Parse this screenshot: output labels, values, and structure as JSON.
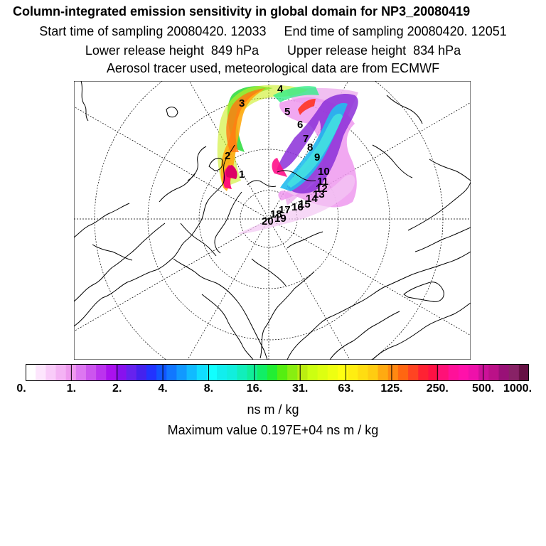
{
  "header": {
    "title": "Column-integrated emission sensitivity in global domain for NP3_20080419",
    "start_label": "Start time of sampling 20080420. 12033",
    "end_label": "End time of sampling 20080420. 12051",
    "lower_label": "Lower release height  849 hPa",
    "upper_label": "Upper release height  834 hPa",
    "aerosol_line": "Aerosol tracer used, meteorological data are from ECMWF"
  },
  "map": {
    "projection": "polar stereographic, North Pole",
    "day_markers": [
      "1",
      "2",
      "3",
      "4",
      "5",
      "6",
      "7",
      "8",
      "9",
      "10",
      "11",
      "12",
      "13",
      "14",
      "15",
      "16",
      "17",
      "18",
      "19",
      "20"
    ]
  },
  "colorbar": {
    "tick_labels": [
      "0.",
      "1.",
      "2.",
      "4.",
      "8.",
      "16.",
      "31.",
      "63.",
      "125.",
      "250.",
      "500.",
      "1000."
    ],
    "colors": [
      "#ffffff",
      "#fde6fd",
      "#f9ccf9",
      "#f4b3f4",
      "#ee99ee",
      "#dd77f1",
      "#cc55ee",
      "#bb33ee",
      "#aa11ee",
      "#8811ee",
      "#6622ee",
      "#4422ee",
      "#2233ff",
      "#1155ff",
      "#1177ff",
      "#1199ff",
      "#11bbff",
      "#11ddff",
      "#11ffff",
      "#11eeee",
      "#11eedd",
      "#11eebb",
      "#11ee99",
      "#11ee66",
      "#22ee33",
      "#55ee11",
      "#88ee11",
      "#bbee11",
      "#ccff11",
      "#ddff11",
      "#eeff11",
      "#ffff11",
      "#ffee11",
      "#ffdd11",
      "#ffcc11",
      "#ffaa11",
      "#ff8811",
      "#ff6611",
      "#ff4422",
      "#ff2233",
      "#ff1144",
      "#ff1177",
      "#ff1199",
      "#ff11aa",
      "#ee11aa",
      "#cc1199",
      "#bb1188",
      "#991177",
      "#882266",
      "#661144"
    ],
    "units": "ns m / kg"
  },
  "footer": {
    "maximum": "Maximum value  0.197E+04 ns m / kg"
  }
}
